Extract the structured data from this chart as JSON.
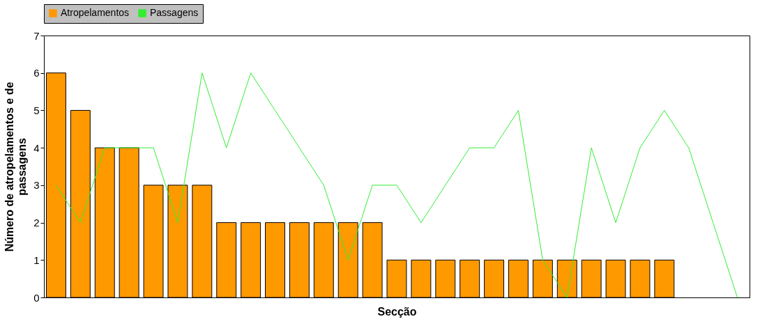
{
  "chart_data": {
    "type": "bar",
    "xlabel": "Secção",
    "ylabel": "Número de atropelamentos e de passagens",
    "categories": [
      null,
      null,
      null,
      null,
      null,
      null,
      null,
      null,
      null,
      null,
      null,
      null,
      null,
      null,
      null,
      null,
      null,
      null,
      null,
      null,
      null,
      null,
      null,
      null,
      null,
      null,
      null,
      null,
      null
    ],
    "series": [
      {
        "name": "Atropelamentos",
        "color": "#ff9900",
        "values": [
          6,
          5,
          4,
          4,
          3,
          3,
          3,
          2,
          2,
          2,
          2,
          2,
          2,
          2,
          1,
          1,
          1,
          1,
          1,
          1,
          1,
          1,
          1,
          1,
          1,
          1,
          null,
          null,
          null
        ]
      },
      {
        "name": "Passagens",
        "type": "line",
        "color": "#33ee33",
        "values": [
          3,
          2,
          4,
          4,
          4,
          2,
          6,
          4,
          6,
          5,
          4,
          3,
          1,
          3,
          3,
          2,
          3,
          4,
          4,
          5,
          1,
          0,
          4,
          2,
          4,
          5,
          4,
          2,
          0
        ]
      }
    ],
    "ylim": [
      0,
      7
    ],
    "yticks": [
      0,
      1,
      2,
      3,
      4,
      5,
      6,
      7
    ],
    "grid": false,
    "legend": "top",
    "tick_labels": "y"
  }
}
